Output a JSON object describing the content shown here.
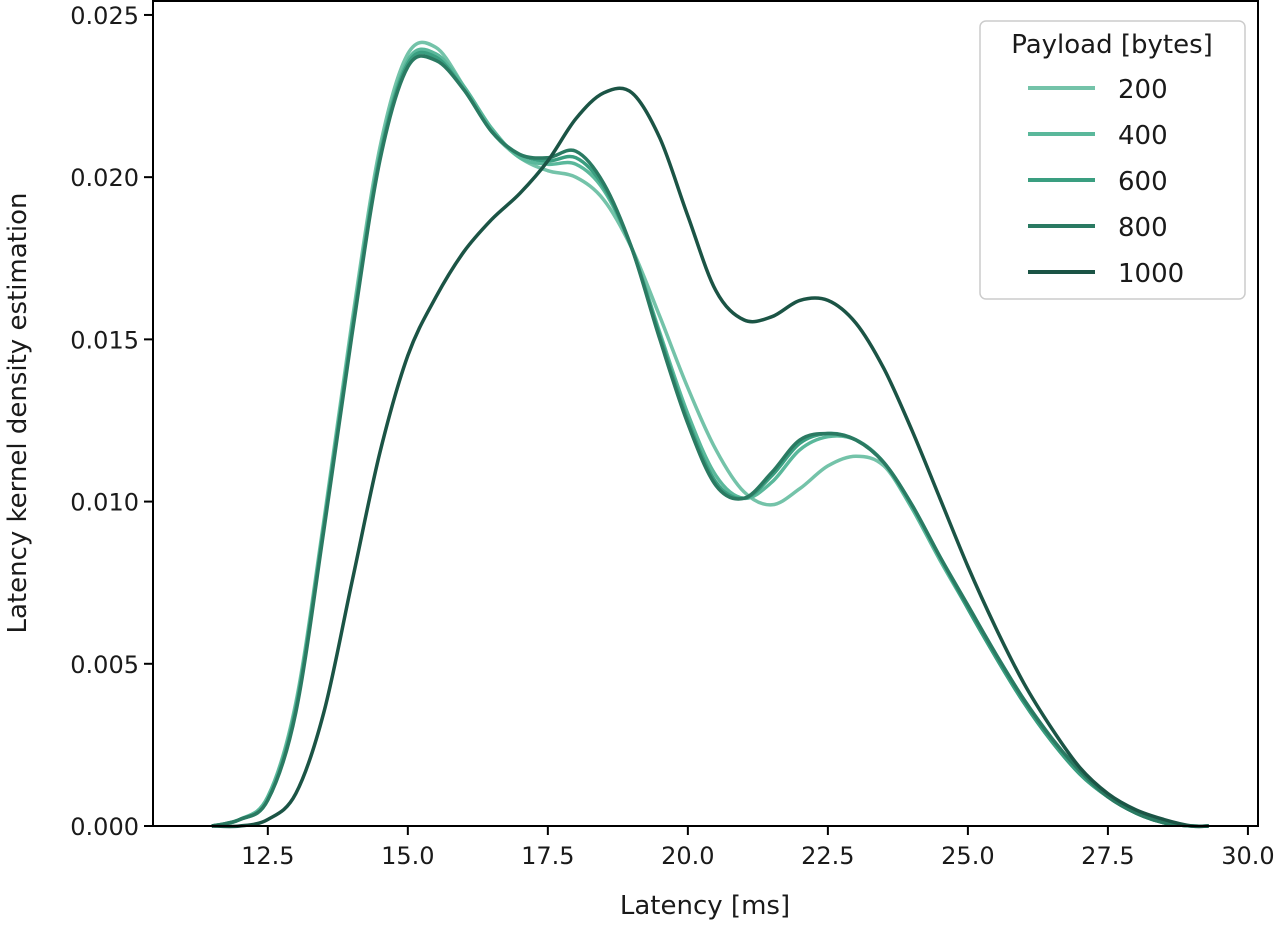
{
  "chart_data": {
    "type": "line",
    "title": "",
    "xlabel": "Latency [ms]",
    "ylabel": "Latency kernel density estimation",
    "xlim": [
      10.45,
      30.18
    ],
    "ylim": [
      0,
      0.02543
    ],
    "xticks": [
      "12.5",
      "15.0",
      "17.5",
      "20.0",
      "22.5",
      "25.0",
      "27.5",
      "30.0"
    ],
    "yticks": [
      "0.000",
      "0.005",
      "0.010",
      "0.015",
      "0.020",
      "0.025"
    ],
    "grid": false,
    "legend": {
      "title": "Payload [bytes]",
      "placement": "top-right"
    },
    "x": [
      11.5,
      12.0,
      12.5,
      13.0,
      13.5,
      14.0,
      14.5,
      15.0,
      15.5,
      16.0,
      16.5,
      17.0,
      17.5,
      18.0,
      18.5,
      19.0,
      19.5,
      20.0,
      20.5,
      21.0,
      21.5,
      22.0,
      22.5,
      23.0,
      23.5,
      24.0,
      24.5,
      25.0,
      25.5,
      26.0,
      26.5,
      27.0,
      27.5,
      28.0,
      28.5,
      29.0,
      29.3
    ],
    "series": [
      {
        "name": "200",
        "color": "#74c3a9",
        "values": [
          0,
          0.0002,
          0.0009,
          0.0038,
          0.0094,
          0.0155,
          0.0209,
          0.0238,
          0.024,
          0.0228,
          0.0214,
          0.0206,
          0.0202,
          0.02,
          0.0193,
          0.0178,
          0.0157,
          0.0135,
          0.0116,
          0.0103,
          0.0099,
          0.0104,
          0.0111,
          0.0114,
          0.0111,
          0.0098,
          0.0083,
          0.0068,
          0.0053,
          0.0039,
          0.0027,
          0.0016,
          0.0009,
          0.0004,
          0.0001,
          0,
          0
        ]
      },
      {
        "name": "400",
        "color": "#5ab89b",
        "values": [
          0,
          0.0002,
          0.0009,
          0.0037,
          0.0093,
          0.0153,
          0.0207,
          0.0236,
          0.0238,
          0.0228,
          0.0215,
          0.0206,
          0.0204,
          0.0204,
          0.0196,
          0.0178,
          0.0152,
          0.0127,
          0.0108,
          0.0101,
          0.0106,
          0.0116,
          0.012,
          0.0119,
          0.0112,
          0.0098,
          0.0082,
          0.0067,
          0.0052,
          0.0038,
          0.0026,
          0.0016,
          0.0009,
          0.0004,
          0.0001,
          0,
          0
        ]
      },
      {
        "name": "600",
        "color": "#3a9e80",
        "values": [
          0,
          0.0002,
          0.0008,
          0.0036,
          0.0092,
          0.0152,
          0.0206,
          0.0235,
          0.0237,
          0.0227,
          0.0214,
          0.0207,
          0.0205,
          0.0206,
          0.0197,
          0.0178,
          0.0151,
          0.0125,
          0.0106,
          0.0101,
          0.0108,
          0.0118,
          0.0121,
          0.0119,
          0.0112,
          0.0099,
          0.0083,
          0.0067,
          0.0052,
          0.0038,
          0.0026,
          0.0016,
          0.0009,
          0.0004,
          0.0001,
          0,
          0
        ]
      },
      {
        "name": "800",
        "color": "#2a7a62",
        "values": [
          0,
          0.0002,
          0.0008,
          0.0035,
          0.0091,
          0.0151,
          0.0205,
          0.0234,
          0.0236,
          0.0227,
          0.0214,
          0.0207,
          0.0206,
          0.0208,
          0.0198,
          0.0178,
          0.015,
          0.0124,
          0.0105,
          0.0101,
          0.0109,
          0.0119,
          0.0121,
          0.0119,
          0.0112,
          0.0099,
          0.0083,
          0.0068,
          0.0053,
          0.0039,
          0.0027,
          0.0017,
          0.0009,
          0.0004,
          0.0001,
          0,
          0
        ]
      },
      {
        "name": "1000",
        "color": "#1b5445",
        "values": [
          0,
          0,
          0.0002,
          0.001,
          0.0035,
          0.0075,
          0.0115,
          0.0145,
          0.0163,
          0.0177,
          0.0187,
          0.0195,
          0.0205,
          0.0218,
          0.0226,
          0.0226,
          0.0212,
          0.0188,
          0.0165,
          0.0156,
          0.0157,
          0.0162,
          0.0162,
          0.0155,
          0.0141,
          0.0122,
          0.0101,
          0.008,
          0.0061,
          0.0044,
          0.003,
          0.0018,
          0.001,
          0.0005,
          0.0002,
          0,
          0
        ]
      }
    ]
  }
}
